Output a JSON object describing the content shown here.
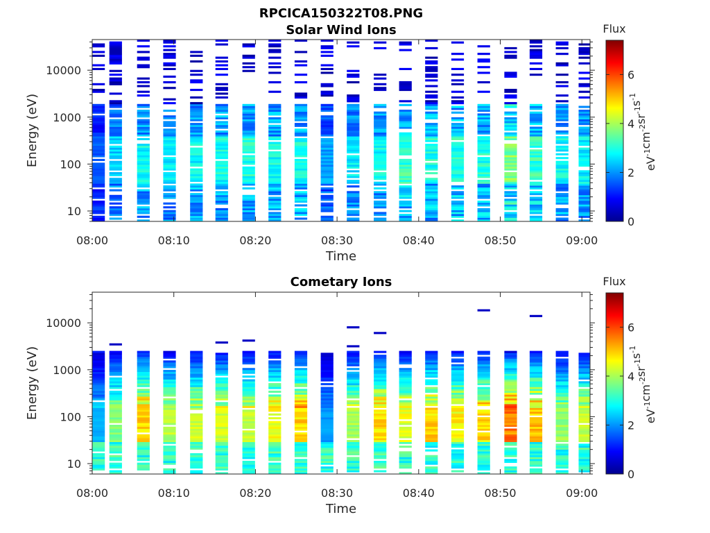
{
  "page": {
    "title": "RPCICA150322T08.PNG"
  },
  "colorbar": {
    "title": "Flux",
    "label_parts": [
      "eV",
      "-1",
      "cm",
      "-2",
      "sr",
      "-1",
      "s",
      "-1"
    ],
    "ticks": [
      0,
      2,
      4,
      6
    ],
    "range": [
      0,
      7.4
    ],
    "colormap": "jet"
  },
  "chart_data": [
    {
      "type": "heatmap",
      "title": "Solar Wind Ions",
      "xlabel": "Time",
      "ylabel": "Energy (eV)",
      "x_ticks": [
        "08:00",
        "08:10",
        "08:20",
        "08:30",
        "08:40",
        "08:50",
        "09:00"
      ],
      "x_range_minutes": [
        0,
        61
      ],
      "y_scale": "log",
      "y_range": [
        6,
        45000
      ],
      "y_ticks": [
        10,
        100,
        1000,
        10000
      ],
      "z_label": "Flux",
      "z_range": [
        0,
        7.4
      ],
      "profile": "solar",
      "scan_start_minutes": [
        0,
        2.1,
        5.5,
        8.7,
        12.0,
        15.1,
        18.4,
        21.6,
        24.8,
        28.0,
        31.2,
        34.5,
        37.6,
        40.8,
        44.0,
        47.2,
        50.5,
        53.6,
        56.8,
        59.6
      ],
      "peak_flux_by_scan": [
        1.8,
        2.8,
        3.2,
        3.0,
        3.2,
        3.3,
        3.4,
        3.3,
        3.4,
        2.4,
        3.0,
        3.2,
        3.6,
        3.4,
        3.5,
        3.4,
        4.2,
        3.6,
        3.2,
        3.1
      ]
    },
    {
      "type": "heatmap",
      "title": "Cometary Ions",
      "xlabel": "Time",
      "ylabel": "Energy (eV)",
      "x_ticks": [
        "08:00",
        "08:10",
        "08:20",
        "08:30",
        "08:40",
        "08:50",
        "09:00"
      ],
      "x_range_minutes": [
        0,
        61
      ],
      "y_scale": "log",
      "y_range": [
        6,
        45000
      ],
      "y_ticks": [
        10,
        100,
        1000,
        10000
      ],
      "z_label": "Flux",
      "z_range": [
        0,
        7.4
      ],
      "profile": "cometary",
      "scan_start_minutes": [
        0,
        2.1,
        5.5,
        8.7,
        12.0,
        15.1,
        18.4,
        21.6,
        24.8,
        28.0,
        31.2,
        34.5,
        37.6,
        40.8,
        44.0,
        47.2,
        50.5,
        53.6,
        56.8,
        59.6
      ],
      "peak_flux_by_scan": [
        2.4,
        4.0,
        5.3,
        4.4,
        4.6,
        4.7,
        4.6,
        4.9,
        5.3,
        2.2,
        4.3,
        5.2,
        4.8,
        5.3,
        5.0,
        5.2,
        6.0,
        5.5,
        4.2,
        4.5
      ]
    }
  ]
}
